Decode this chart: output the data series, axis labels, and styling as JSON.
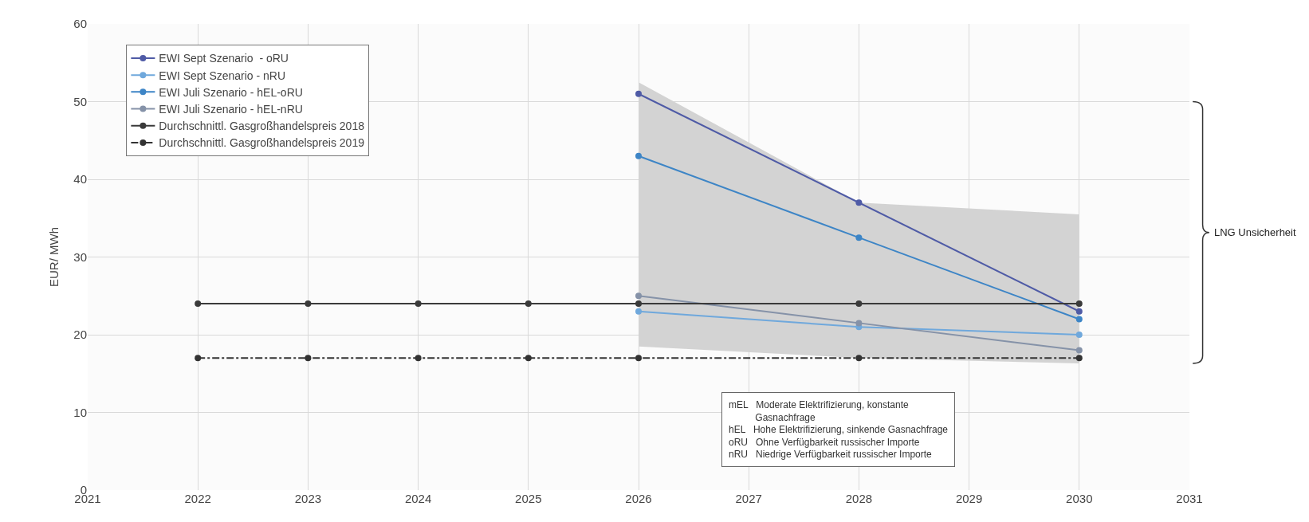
{
  "chart_data": {
    "type": "line",
    "ylabel": "EUR/ MWh",
    "xlim": [
      2021,
      2031
    ],
    "xticks": [
      2021,
      2022,
      2023,
      2024,
      2025,
      2026,
      2027,
      2028,
      2029,
      2030,
      2031
    ],
    "ylim": [
      0,
      60
    ],
    "yticks": [
      0,
      10,
      20,
      30,
      40,
      50,
      60
    ],
    "grid": true,
    "legend": "top left",
    "marker": "circle",
    "series": [
      {
        "name": "EWI Sept Szenario  - oRU",
        "color": "#4f5ba6",
        "x": [
          2026,
          2028,
          2030
        ],
        "values": [
          51,
          37,
          23
        ]
      },
      {
        "name": "EWI Sept Szenario - nRU",
        "color": "#6fa8dc",
        "x": [
          2026,
          2028,
          2030
        ],
        "values": [
          23,
          21,
          20
        ]
      },
      {
        "name": "EWI Juli Szenario - hEL-oRU",
        "color": "#3d85c6",
        "x": [
          2026,
          2028,
          2030
        ],
        "values": [
          43,
          32.5,
          22
        ]
      },
      {
        "name": "EWI Juli Szenario - hEL-nRU",
        "color": "#8592a8",
        "x": [
          2026,
          2028,
          2030
        ],
        "values": [
          25,
          21.5,
          18
        ]
      },
      {
        "name": "Durchschnittl. Gasgroßhandelspreis 2018",
        "color": "#3a3a3a",
        "x": [
          2022,
          2023,
          2024,
          2025,
          2026,
          2028,
          2030
        ],
        "values": [
          24,
          24,
          24,
          24,
          24,
          24,
          24
        ],
        "lower": [
          null,
          null,
          null,
          null,
          18.5,
          17,
          16.3
        ],
        "upper": [
          null,
          null,
          null,
          null,
          52.5,
          37,
          35.5
        ]
      },
      {
        "name": "Durchschnittl. Gasgroßhandelspreis 2019",
        "color": "#333333",
        "line_style": "dashdot",
        "x": [
          2022,
          2023,
          2024,
          2025,
          2026,
          2028,
          2030
        ],
        "values": [
          17,
          17,
          17,
          17,
          17,
          17,
          17
        ]
      }
    ],
    "annotations": [
      "LNG Unsicherheit",
      "mEL   Moderate Elektrifizierung, konstante\n          Gasnachfrage\nhEL   Hohe Elektrifizierung, sinkende Gasnachfrage\noRU   Ohne Verfügbarkeit russischer Importe\nnRU   Niedrige Verfügbarkeit russischer Importe"
    ]
  }
}
